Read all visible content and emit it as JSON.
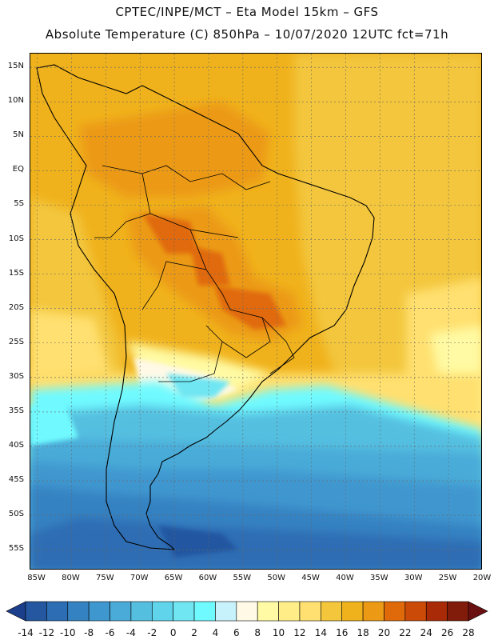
{
  "header": {
    "line1": "CPTEC/INPE/MCT –  Eta Model 15km – GFS",
    "line2": "Absolute Temperature (C) 850hPa – 10/07/2020 12UTC fct=71h"
  },
  "map": {
    "projection": "lat-lon",
    "lon_range": [
      -86,
      -20
    ],
    "lat_range": [
      17,
      -58
    ],
    "lat_labels": [
      "15N",
      "10N",
      "5N",
      "EQ",
      "5S",
      "10S",
      "15S",
      "20S",
      "25S",
      "30S",
      "35S",
      "40S",
      "45S",
      "50S",
      "55S"
    ],
    "lat_values": [
      15,
      10,
      5,
      0,
      -5,
      -10,
      -15,
      -20,
      -25,
      -30,
      -35,
      -40,
      -45,
      -50,
      -55
    ],
    "lon_labels": [
      "85W",
      "80W",
      "75W",
      "70W",
      "65W",
      "60W",
      "55W",
      "50W",
      "45W",
      "40W",
      "35W",
      "30W",
      "25W",
      "20W"
    ],
    "lon_values": [
      -85,
      -80,
      -75,
      -70,
      -65,
      -60,
      -55,
      -50,
      -45,
      -40,
      -35,
      -30,
      -25,
      -20
    ]
  },
  "colorbar": {
    "labels": [
      "-14",
      "-12",
      "-10",
      "-8",
      "-6",
      "-4",
      "-2",
      "0",
      "2",
      "4",
      "6",
      "8",
      "10",
      "12",
      "14",
      "16",
      "18",
      "20",
      "22",
      "24",
      "26",
      "28"
    ],
    "colors": [
      "#1b3f8a",
      "#2457a0",
      "#2d6db3",
      "#3582c2",
      "#3f97cf",
      "#4aabd8",
      "#55bfe0",
      "#5fd4ea",
      "#6fe6f2",
      "#6ffaff",
      "#c8f2fb",
      "#fff9e6",
      "#fffaa3",
      "#ffee88",
      "#ffe070",
      "#f3c63c",
      "#f0b21c",
      "#ec9a15",
      "#e06a0a",
      "#cc4a08",
      "#a92a06",
      "#821c0a",
      "#6a1010"
    ]
  }
}
